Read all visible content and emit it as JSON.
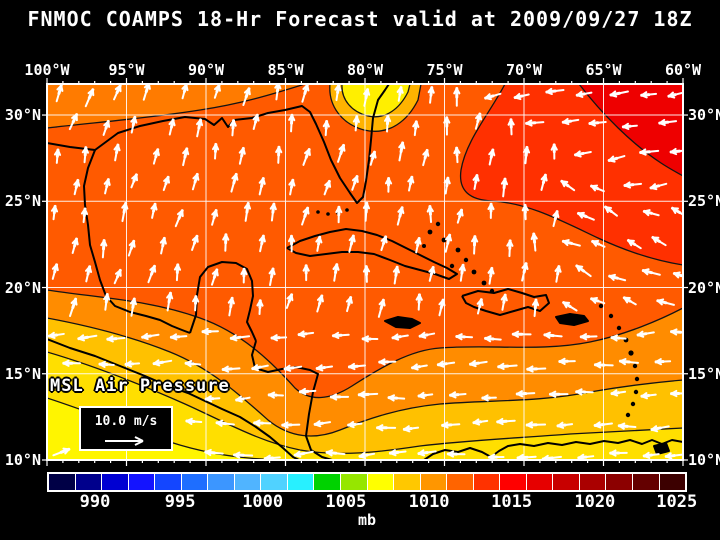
{
  "title": "FNMOC COAMPS 18-Hr Forecast valid at 2009/09/27 18Z",
  "axes": {
    "lon_labels": [
      "100°W",
      "95°W",
      "90°W",
      "85°W",
      "80°W",
      "75°W",
      "70°W",
      "65°W",
      "60°W"
    ],
    "lat_labels": [
      "30°N",
      "25°N",
      "20°N",
      "15°N",
      "10°N"
    ]
  },
  "map": {
    "overlay_label": "MSL Air Pressure",
    "wind_legend_speed": "10.0 m/s"
  },
  "colorbar": {
    "unit": "mb",
    "tick_labels": [
      "990",
      "995",
      "1000",
      "1005",
      "1010",
      "1015",
      "1020",
      "1025"
    ],
    "tick_pct": [
      7.5,
      20.8,
      33.7,
      46.7,
      59.7,
      72.6,
      85.6,
      98.4
    ],
    "segments": [
      "#000046",
      "#00008c",
      "#0000d2",
      "#1414ff",
      "#1446ff",
      "#1e6eff",
      "#3c96ff",
      "#50b4ff",
      "#50d2ff",
      "#28f0ff",
      "#00d200",
      "#96e600",
      "#ffff00",
      "#ffc800",
      "#ff9600",
      "#ff6400",
      "#ff3200",
      "#ff0000",
      "#e60000",
      "#c80000",
      "#aa0000",
      "#8c0000",
      "#640000",
      "#3c0000"
    ]
  },
  "colors": {
    "background": "#000000",
    "text": "#ffffff",
    "frame": "#ffffff",
    "grid": "#ffffff",
    "coast": "#000000",
    "isobar": "#141414",
    "wind": "#ffffff",
    "band_base": "#ff5a00",
    "band_top_strip": "#ff7b00",
    "band_redorange": "#ff3000",
    "band_red": "#ee0000",
    "band_orange": "#ff8c00",
    "band_gold": "#ffc100",
    "band_deep_yellow": "#ffdf00",
    "band_yellow": "#fff500",
    "patch_gold": "#ffb300",
    "patch_yellow": "#ffef00"
  },
  "chart_data": {
    "type": "map",
    "title": "FNMOC COAMPS 18-Hr Forecast valid at 2009/09/27 18Z",
    "field": "MSL Air Pressure",
    "unit": "mb",
    "lon_ticks": [
      "100°W",
      "95°W",
      "90°W",
      "85°W",
      "80°W",
      "75°W",
      "70°W",
      "65°W",
      "60°W"
    ],
    "lat_ticks": [
      "30°N",
      "25°N",
      "20°N",
      "15°N",
      "10°N"
    ],
    "colorbar_ticks_mb": [
      990,
      995,
      1000,
      1005,
      1010,
      1015,
      1020,
      1025
    ],
    "wind_reference": "10.0 m/s",
    "flow_summary": "Clockwise (anticyclonic) flow around Atlantic high in NE corner; easterly trade winds across the Caribbean south of ~18N; highest pressure (red ~1018-1022 mb) northeast Atlantic corner, lowest (yellow ~1008-1010 mb) along southern edge"
  }
}
